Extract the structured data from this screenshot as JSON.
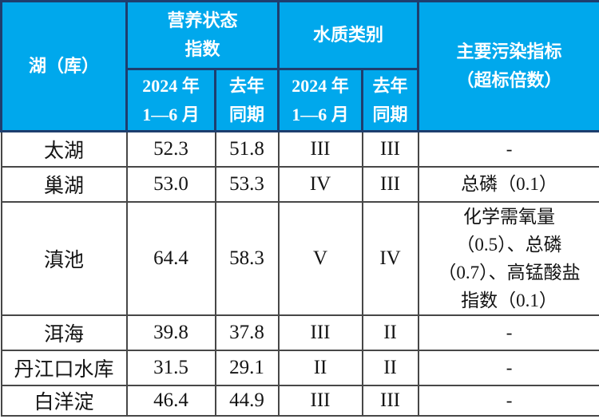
{
  "table": {
    "header": {
      "col_lake": "湖（库）",
      "group_nutrition": "营养状态\n指数",
      "group_quality": "水质类别",
      "col_pollutant": "主要污染指标\n（超标倍数）",
      "sub_current_1": "2024 年\n1—6 月",
      "sub_previous_1": "去年\n同期",
      "sub_current_2": "2024 年\n1—6 月",
      "sub_previous_2": "去年\n同期"
    },
    "rows": [
      {
        "lake": "太湖",
        "tsi_2024": "52.3",
        "tsi_prev": "51.8",
        "wq_2024": "III",
        "wq_prev": "III",
        "pollutants": "-"
      },
      {
        "lake": "巢湖",
        "tsi_2024": "53.0",
        "tsi_prev": "53.3",
        "wq_2024": "IV",
        "wq_prev": "III",
        "pollutants": "总磷（0.1）"
      },
      {
        "lake": "滇池",
        "tsi_2024": "64.4",
        "tsi_prev": "58.3",
        "wq_2024": "V",
        "wq_prev": "IV",
        "pollutants": "化学需氧量\n（0.5）、总磷\n（0.7）、高锰酸盐\n指数（0.1）"
      },
      {
        "lake": "洱海",
        "tsi_2024": "39.8",
        "tsi_prev": "37.8",
        "wq_2024": "III",
        "wq_prev": "II",
        "pollutants": "-"
      },
      {
        "lake": "丹江口水库",
        "tsi_2024": "31.5",
        "tsi_prev": "29.1",
        "wq_2024": "II",
        "wq_prev": "II",
        "pollutants": "-"
      },
      {
        "lake": "白洋淀",
        "tsi_2024": "46.4",
        "tsi_prev": "44.9",
        "wq_2024": "III",
        "wq_prev": "III",
        "pollutants": "-"
      }
    ]
  },
  "colors": {
    "header_bg": "#00A8EC",
    "header_text": "#FFFFFF",
    "header_border": "#1E3E6E",
    "body_border": "#474747",
    "body_text": "#141414"
  },
  "chart_data": {
    "type": "table",
    "title": "湖（库）营养状态指数与水质类别（2024年1—6月 与 去年同期）",
    "columns": [
      "湖（库）",
      "营养状态指数 2024年1—6月",
      "营养状态指数 去年同期",
      "水质类别 2024年1—6月",
      "水质类别 去年同期",
      "主要污染指标（超标倍数）"
    ],
    "rows": [
      [
        "太湖",
        52.3,
        51.8,
        "III",
        "III",
        "-"
      ],
      [
        "巢湖",
        53.0,
        53.3,
        "IV",
        "III",
        "总磷（0.1）"
      ],
      [
        "滇池",
        64.4,
        58.3,
        "V",
        "IV",
        "化学需氧量（0.5）、总磷（0.7）、高锰酸盐指数（0.1）"
      ],
      [
        "洱海",
        39.8,
        37.8,
        "III",
        "II",
        "-"
      ],
      [
        "丹江口水库",
        31.5,
        29.1,
        "II",
        "II",
        "-"
      ],
      [
        "白洋淀",
        46.4,
        44.9,
        "III",
        "III",
        "-"
      ]
    ]
  }
}
